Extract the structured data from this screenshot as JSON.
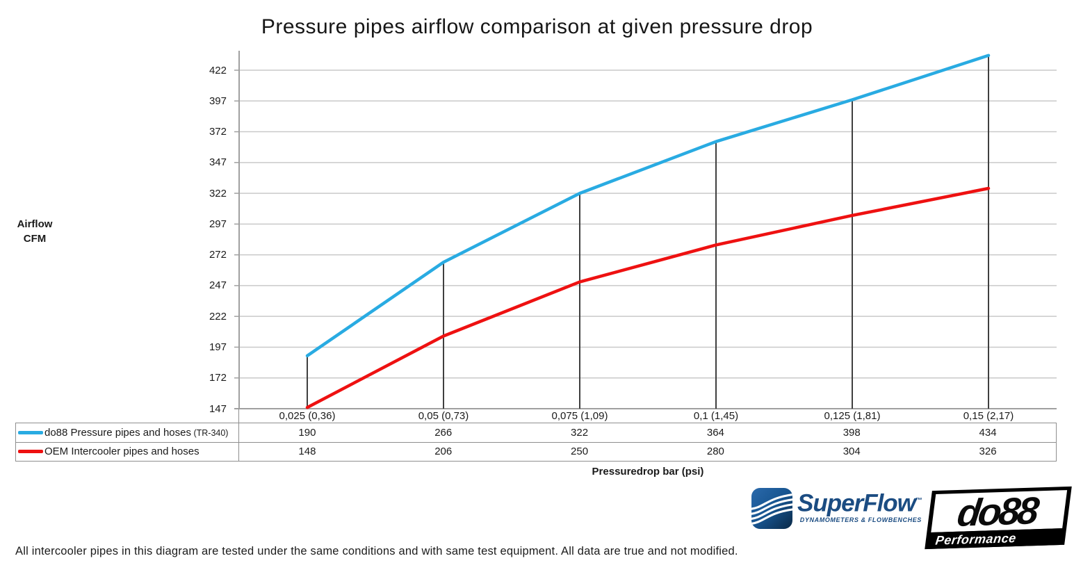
{
  "title": "Pressure pipes airflow comparison at given pressure drop",
  "y_axis_label": {
    "line1": "Airflow",
    "line2": "CFM"
  },
  "x_axis_label": "Pressuredrop bar (psi)",
  "chart_data": {
    "type": "line",
    "title": "Pressure pipes airflow comparison at given pressure drop",
    "categories": [
      "0,025 (0,36)",
      "0,05 (0,73)",
      "0,075 (1,09)",
      "0,1 (1,45)",
      "0,125 (1,81)",
      "0,15 (2,17)"
    ],
    "series": [
      {
        "name": "do88 Pressure pipes and hoses",
        "suffix": " (TR-340)",
        "color": "#29abe2",
        "values": [
          190,
          266,
          322,
          364,
          398,
          434
        ]
      },
      {
        "name": "OEM Intercooler pipes and hoses",
        "suffix": "",
        "color": "#ee1111",
        "values": [
          148,
          206,
          250,
          280,
          304,
          326
        ]
      }
    ],
    "xlabel": "Pressuredrop bar (psi)",
    "ylabel": "Airflow CFM",
    "yticks": [
      147,
      172,
      197,
      222,
      247,
      272,
      297,
      322,
      347,
      372,
      397,
      422
    ],
    "ylim": [
      147,
      438
    ],
    "grid": true,
    "legend_position": "table-left",
    "droplines_at_each_category_up_to_series": "do88 Pressure pipes and hoses"
  },
  "colors": {
    "do88_line": "#29abe2",
    "oem_line": "#ee1111",
    "gridline": "#c9c9c9",
    "axis": "#a0a0a0",
    "dropline": "#3f3f3f",
    "table_border": "#8e8e8e",
    "superflow_blue": "#1b4c82"
  },
  "logos": {
    "superflow": {
      "brand": "SuperFlow",
      "trademark": "™",
      "tagline": "DYNAMOMETERS & FLOWBENCHES"
    },
    "do88": {
      "brand": "do88",
      "tagline": "Performance"
    }
  },
  "footer": "All intercooler pipes in this diagram are tested under the same conditions and with same test equipment. All data are true and not modified."
}
